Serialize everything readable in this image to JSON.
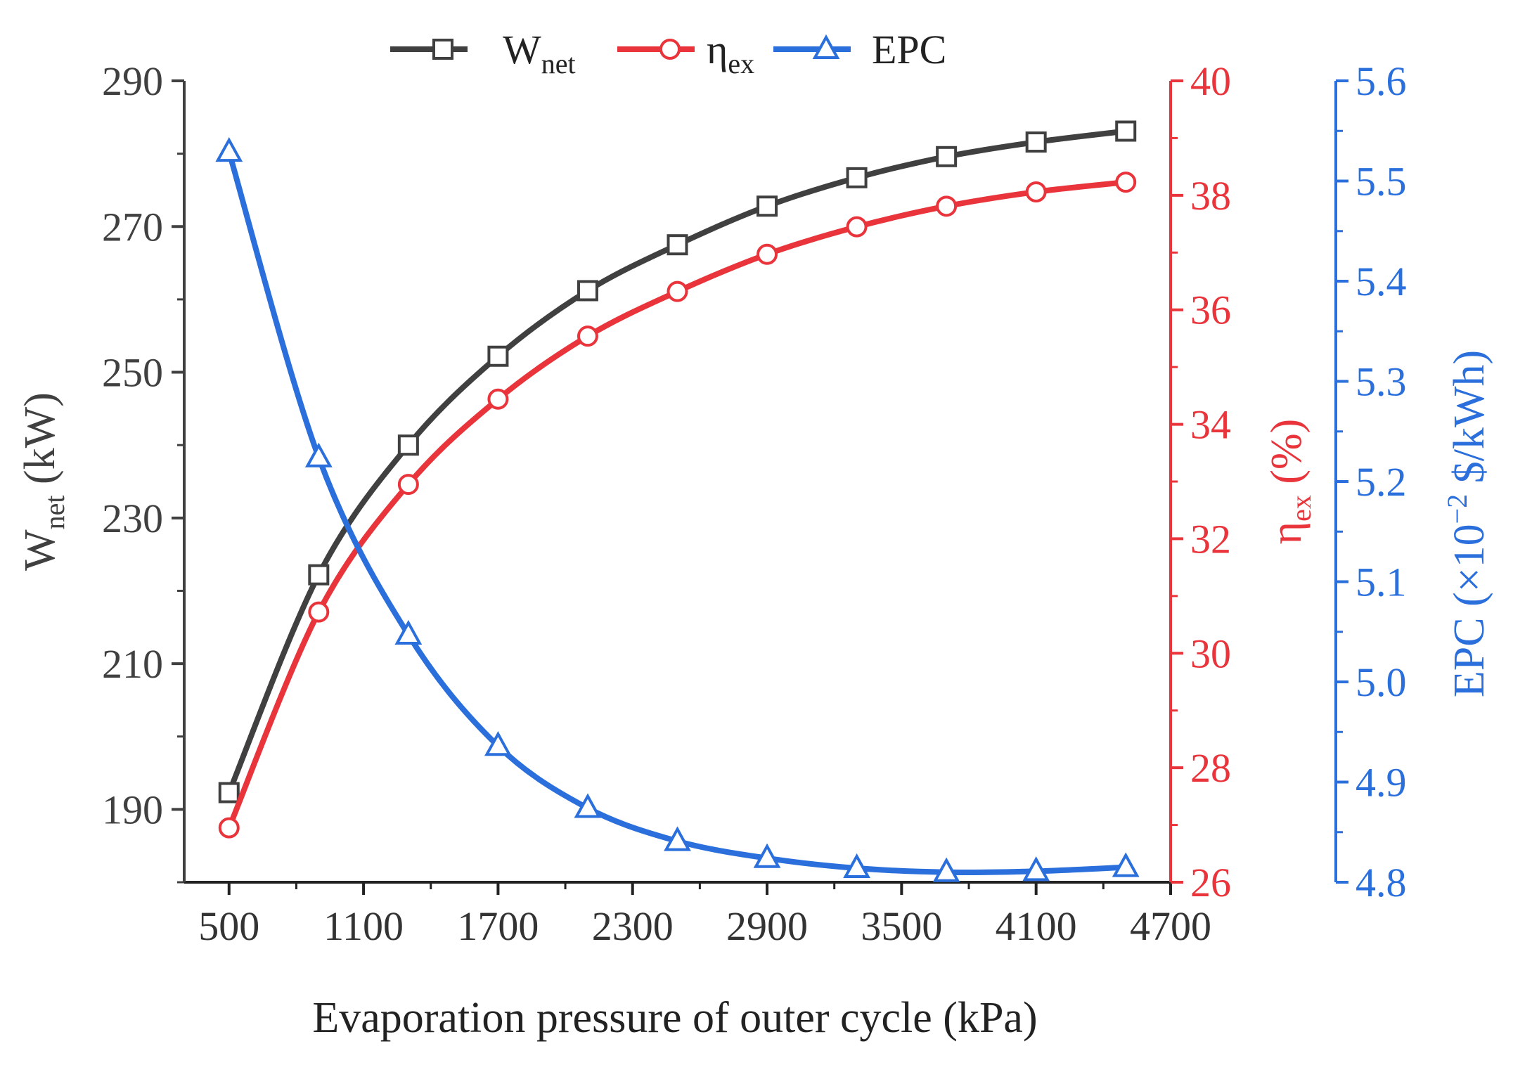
{
  "chart_data": {
    "type": "line",
    "xlabel": "Evaporation pressure of outer cycle (kPa)",
    "x_ticks": [
      500,
      1100,
      1700,
      2300,
      2900,
      3500,
      4100,
      4700
    ],
    "xlim": [
      300,
      4700
    ],
    "x": [
      500,
      900,
      1300,
      1700,
      2100,
      2500,
      2900,
      3300,
      3700,
      4100,
      4500
    ],
    "axes": {
      "left": {
        "label_main": "W",
        "label_sub": "net",
        "label_unit": " (kW)",
        "ylim": [
          180,
          290
        ],
        "ticks": [
          190,
          210,
          230,
          250,
          270,
          290
        ],
        "color": "#404040"
      },
      "right1": {
        "label_main": "η",
        "label_sub": "ex",
        "label_unit": " (%)",
        "ylim": [
          26,
          40
        ],
        "ticks": [
          26,
          28,
          30,
          32,
          34,
          36,
          38,
          40
        ],
        "color": "#e8343a"
      },
      "right2": {
        "label_main": "EPC (×10",
        "label_sup": "−2",
        "label_unit": " $/kWh)",
        "ylim": [
          4.8,
          5.6
        ],
        "ticks": [
          "4.8",
          "4.9",
          "5.0",
          "5.1",
          "5.2",
          "5.3",
          "5.4",
          "5.5",
          "5.6"
        ],
        "color": "#2a6fdb"
      }
    },
    "series": [
      {
        "name": "W",
        "name_sub": "net",
        "axis": "left",
        "marker": "square",
        "color": "#404040",
        "values": [
          192.3,
          222.2,
          240.0,
          252.2,
          261.2,
          267.5,
          272.8,
          276.7,
          279.6,
          281.6,
          283.1
        ]
      },
      {
        "name": "η",
        "name_sub": "ex",
        "axis": "right1",
        "marker": "circle",
        "color": "#e8343a",
        "values": [
          26.95,
          30.72,
          32.95,
          34.44,
          35.54,
          36.32,
          36.97,
          37.45,
          37.81,
          38.06,
          38.23
        ]
      },
      {
        "name": "EPC",
        "axis": "right2",
        "marker": "triangle",
        "color": "#2a6fdb",
        "values": [
          5.529,
          5.224,
          5.047,
          4.936,
          4.874,
          4.841,
          4.824,
          4.814,
          4.81,
          4.811,
          4.815
        ]
      }
    ]
  }
}
